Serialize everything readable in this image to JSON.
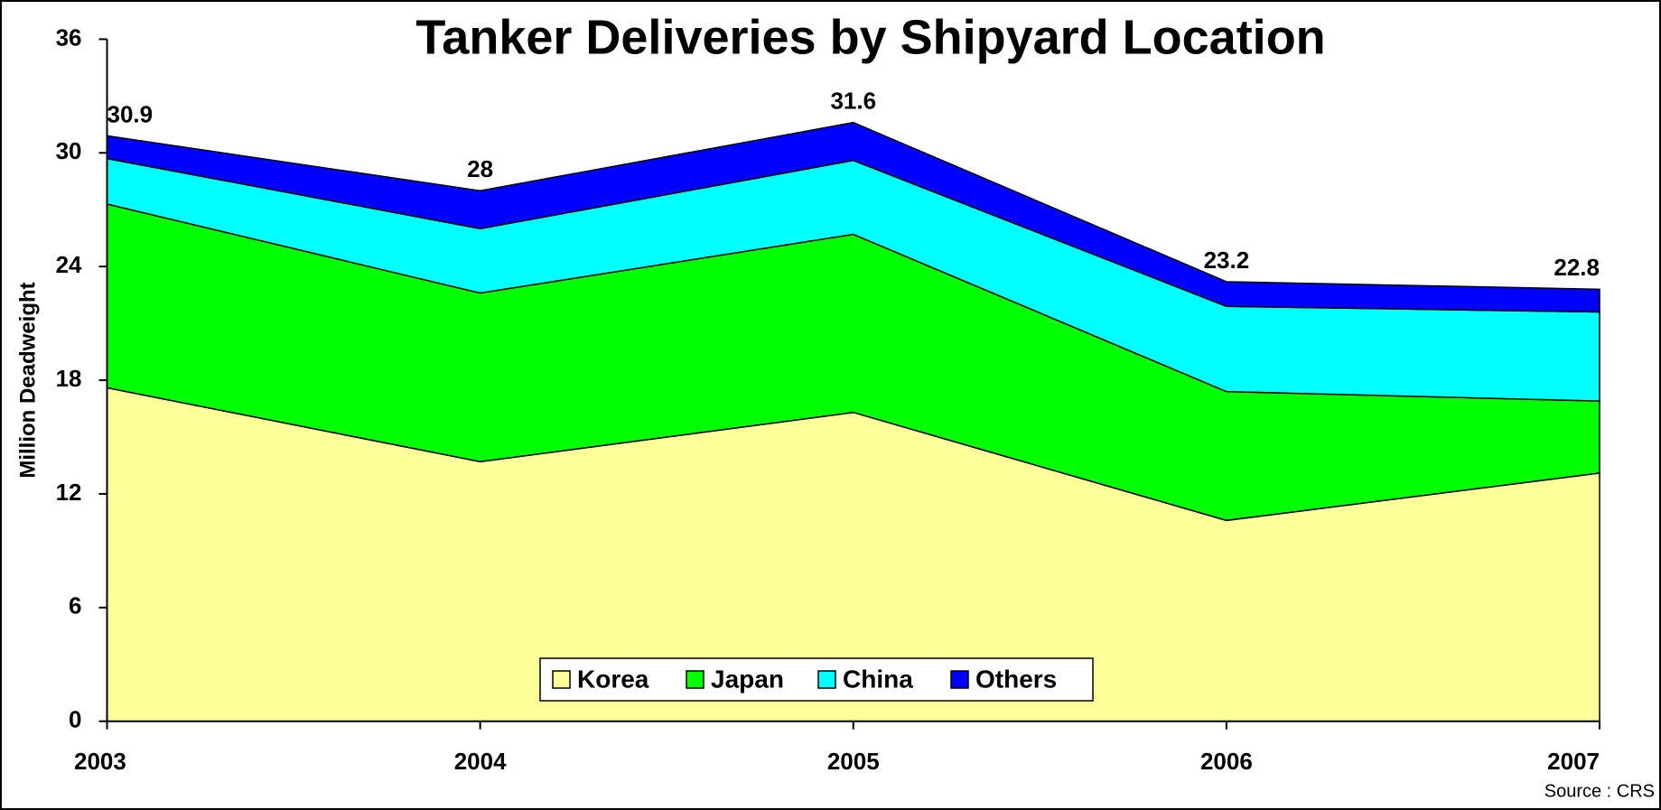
{
  "chart_data": {
    "type": "stacked-area",
    "title": "Tanker Deliveries by Shipyard Location",
    "y_label": "Million Deadweight",
    "source": "Source : CRS",
    "categories": [
      "2003",
      "2004",
      "2005",
      "2006",
      "2007"
    ],
    "series": [
      {
        "name": "Korea",
        "color": "#ffff99",
        "values": [
          17.6,
          13.7,
          16.3,
          10.6,
          13.1
        ]
      },
      {
        "name": "Japan",
        "color": "#00ff00",
        "values": [
          9.7,
          8.9,
          9.4,
          6.8,
          3.8
        ]
      },
      {
        "name": "China",
        "color": "#00ffff",
        "values": [
          2.4,
          3.4,
          3.9,
          4.5,
          4.7
        ]
      },
      {
        "name": "Others",
        "color": "#0000ff",
        "values": [
          1.2,
          2.0,
          2.0,
          1.3,
          1.2
        ]
      }
    ],
    "totals": [
      30.9,
      28,
      31.6,
      23.2,
      22.8
    ],
    "ylim": [
      0,
      36
    ],
    "yticks": [
      0,
      6,
      12,
      18,
      24,
      30,
      36
    ]
  }
}
